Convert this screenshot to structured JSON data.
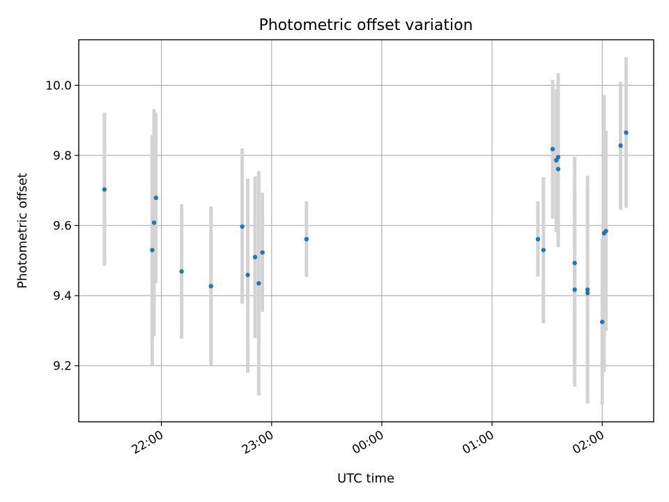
{
  "chart_data": {
    "type": "scatter",
    "title": "Photometric offset variation",
    "xlabel": "UTC time",
    "ylabel": "Photometric offset",
    "x_ticks": [
      "21:00",
      "22:00",
      "23:00",
      "00:00",
      "01:00",
      "02:00"
    ],
    "x_tick_labels": [
      "",
      "22:00",
      "23:00",
      "00:00",
      "01:00",
      "02:00"
    ],
    "y_ticks": [
      9.2,
      9.4,
      9.6,
      9.8,
      10.0
    ],
    "y_tick_labels": [
      "9.2",
      "9.4",
      "9.6",
      "9.8",
      "10.0"
    ],
    "xlim": [
      "21:15",
      "02:28"
    ],
    "ylim": [
      9.04,
      10.13
    ],
    "grid": true,
    "colors": {
      "points": "#1f77b4",
      "error_bars": "#d3d3d3",
      "grid": "#b0b0b0"
    },
    "series": [
      {
        "points": [
          {
            "x": "21:29",
            "y": 9.703,
            "err_low": 9.485,
            "err_high": 9.922
          },
          {
            "x": "21:55",
            "y": 9.53,
            "err_low": 9.2,
            "err_high": 9.858
          },
          {
            "x": "21:56",
            "y": 9.608,
            "err_low": 9.285,
            "err_high": 9.932
          },
          {
            "x": "21:57",
            "y": 9.679,
            "err_low": 9.436,
            "err_high": 9.922
          },
          {
            "x": "22:11",
            "y": 9.469,
            "err_low": 9.277,
            "err_high": 9.661
          },
          {
            "x": "22:27",
            "y": 9.427,
            "err_low": 9.2,
            "err_high": 9.654
          },
          {
            "x": "22:44",
            "y": 9.597,
            "err_low": 9.377,
            "err_high": 9.82
          },
          {
            "x": "22:47",
            "y": 9.459,
            "err_low": 9.18,
            "err_high": 9.734
          },
          {
            "x": "22:51",
            "y": 9.51,
            "err_low": 9.279,
            "err_high": 9.74
          },
          {
            "x": "22:53",
            "y": 9.435,
            "err_low": 9.115,
            "err_high": 9.755
          },
          {
            "x": "22:55",
            "y": 9.523,
            "err_low": 9.354,
            "err_high": 9.694
          },
          {
            "x": "23:19",
            "y": 9.561,
            "err_low": 9.454,
            "err_high": 9.669
          },
          {
            "x": "01:25",
            "y": 9.561,
            "err_low": 9.454,
            "err_high": 9.669
          },
          {
            "x": "01:28",
            "y": 9.53,
            "err_low": 9.321,
            "err_high": 9.738
          },
          {
            "x": "01:33",
            "y": 9.818,
            "err_low": 9.62,
            "err_high": 10.016
          },
          {
            "x": "01:35",
            "y": 9.786,
            "err_low": 9.581,
            "err_high": 9.99
          },
          {
            "x": "01:36",
            "y": 9.761,
            "err_low": 9.538,
            "err_high": 9.984
          },
          {
            "x": "01:36",
            "y": 9.795,
            "err_low": 9.556,
            "err_high": 10.035
          },
          {
            "x": "01:45",
            "y": 9.493,
            "err_low": 9.189,
            "err_high": 9.796
          },
          {
            "x": "01:45",
            "y": 9.417,
            "err_low": 9.141,
            "err_high": 9.694
          },
          {
            "x": "01:52",
            "y": 9.407,
            "err_low": 9.101,
            "err_high": 9.712
          },
          {
            "x": "01:52",
            "y": 9.417,
            "err_low": 9.092,
            "err_high": 9.742
          },
          {
            "x": "02:00",
            "y": 9.325,
            "err_low": 9.089,
            "err_high": 9.561
          },
          {
            "x": "02:01",
            "y": 9.578,
            "err_low": 9.183,
            "err_high": 9.972
          },
          {
            "x": "02:02",
            "y": 9.584,
            "err_low": 9.299,
            "err_high": 9.87
          },
          {
            "x": "02:10",
            "y": 9.828,
            "err_low": 9.645,
            "err_high": 10.01
          },
          {
            "x": "02:13",
            "y": 9.865,
            "err_low": 9.651,
            "err_high": 10.08
          }
        ]
      }
    ]
  }
}
